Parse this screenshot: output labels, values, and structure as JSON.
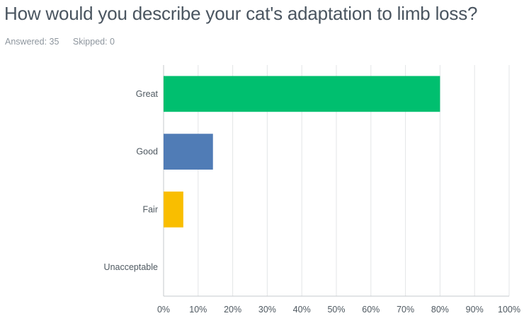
{
  "question": {
    "title": "How would you describe your cat's adaptation to limb loss?",
    "answered": "Answered: 35",
    "skipped": "Skipped: 0"
  },
  "chart_data": {
    "type": "bar",
    "orientation": "horizontal",
    "categories": [
      "Great",
      "Good",
      "Fair",
      "Unacceptable"
    ],
    "values": [
      80,
      14.29,
      5.71,
      0
    ],
    "value_unit": "%",
    "colors": [
      "#00bf6f",
      "#507cb6",
      "#f9be00",
      "#6bc8cd"
    ],
    "xticks": [
      "0%",
      "10%",
      "20%",
      "30%",
      "40%",
      "50%",
      "60%",
      "70%",
      "80%",
      "90%",
      "100%"
    ],
    "xlim": [
      0,
      100
    ],
    "grid": true,
    "title": "",
    "xlabel": "",
    "ylabel": ""
  }
}
